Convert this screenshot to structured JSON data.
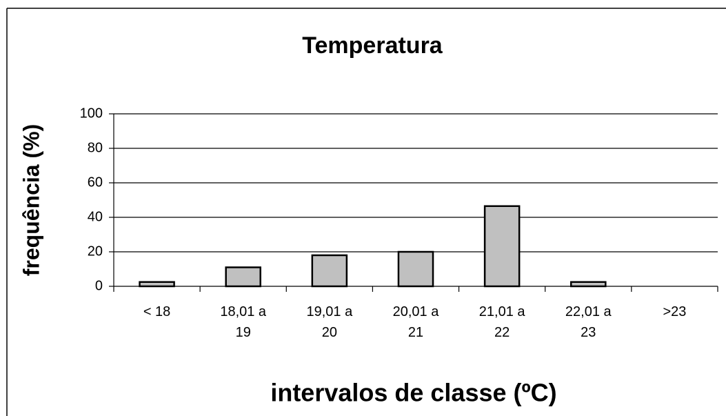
{
  "chart_data": {
    "type": "bar",
    "title": "Temperatura",
    "x_label": "intervalos de classe (ºC)",
    "y_label": "frequência (%)",
    "categories": [
      "< 18",
      "18,01 a 19",
      "19,01 a 20",
      "20,01 a 21",
      "21,01 a 22",
      "22,01 a 23",
      ">23"
    ],
    "values": [
      2.5,
      11,
      18,
      20,
      46.5,
      2.5,
      0
    ],
    "color": "#c0c0c0",
    "ylim": [
      0,
      100
    ],
    "yticks": [
      0,
      20,
      40,
      60,
      80,
      100
    ],
    "grid": true
  }
}
